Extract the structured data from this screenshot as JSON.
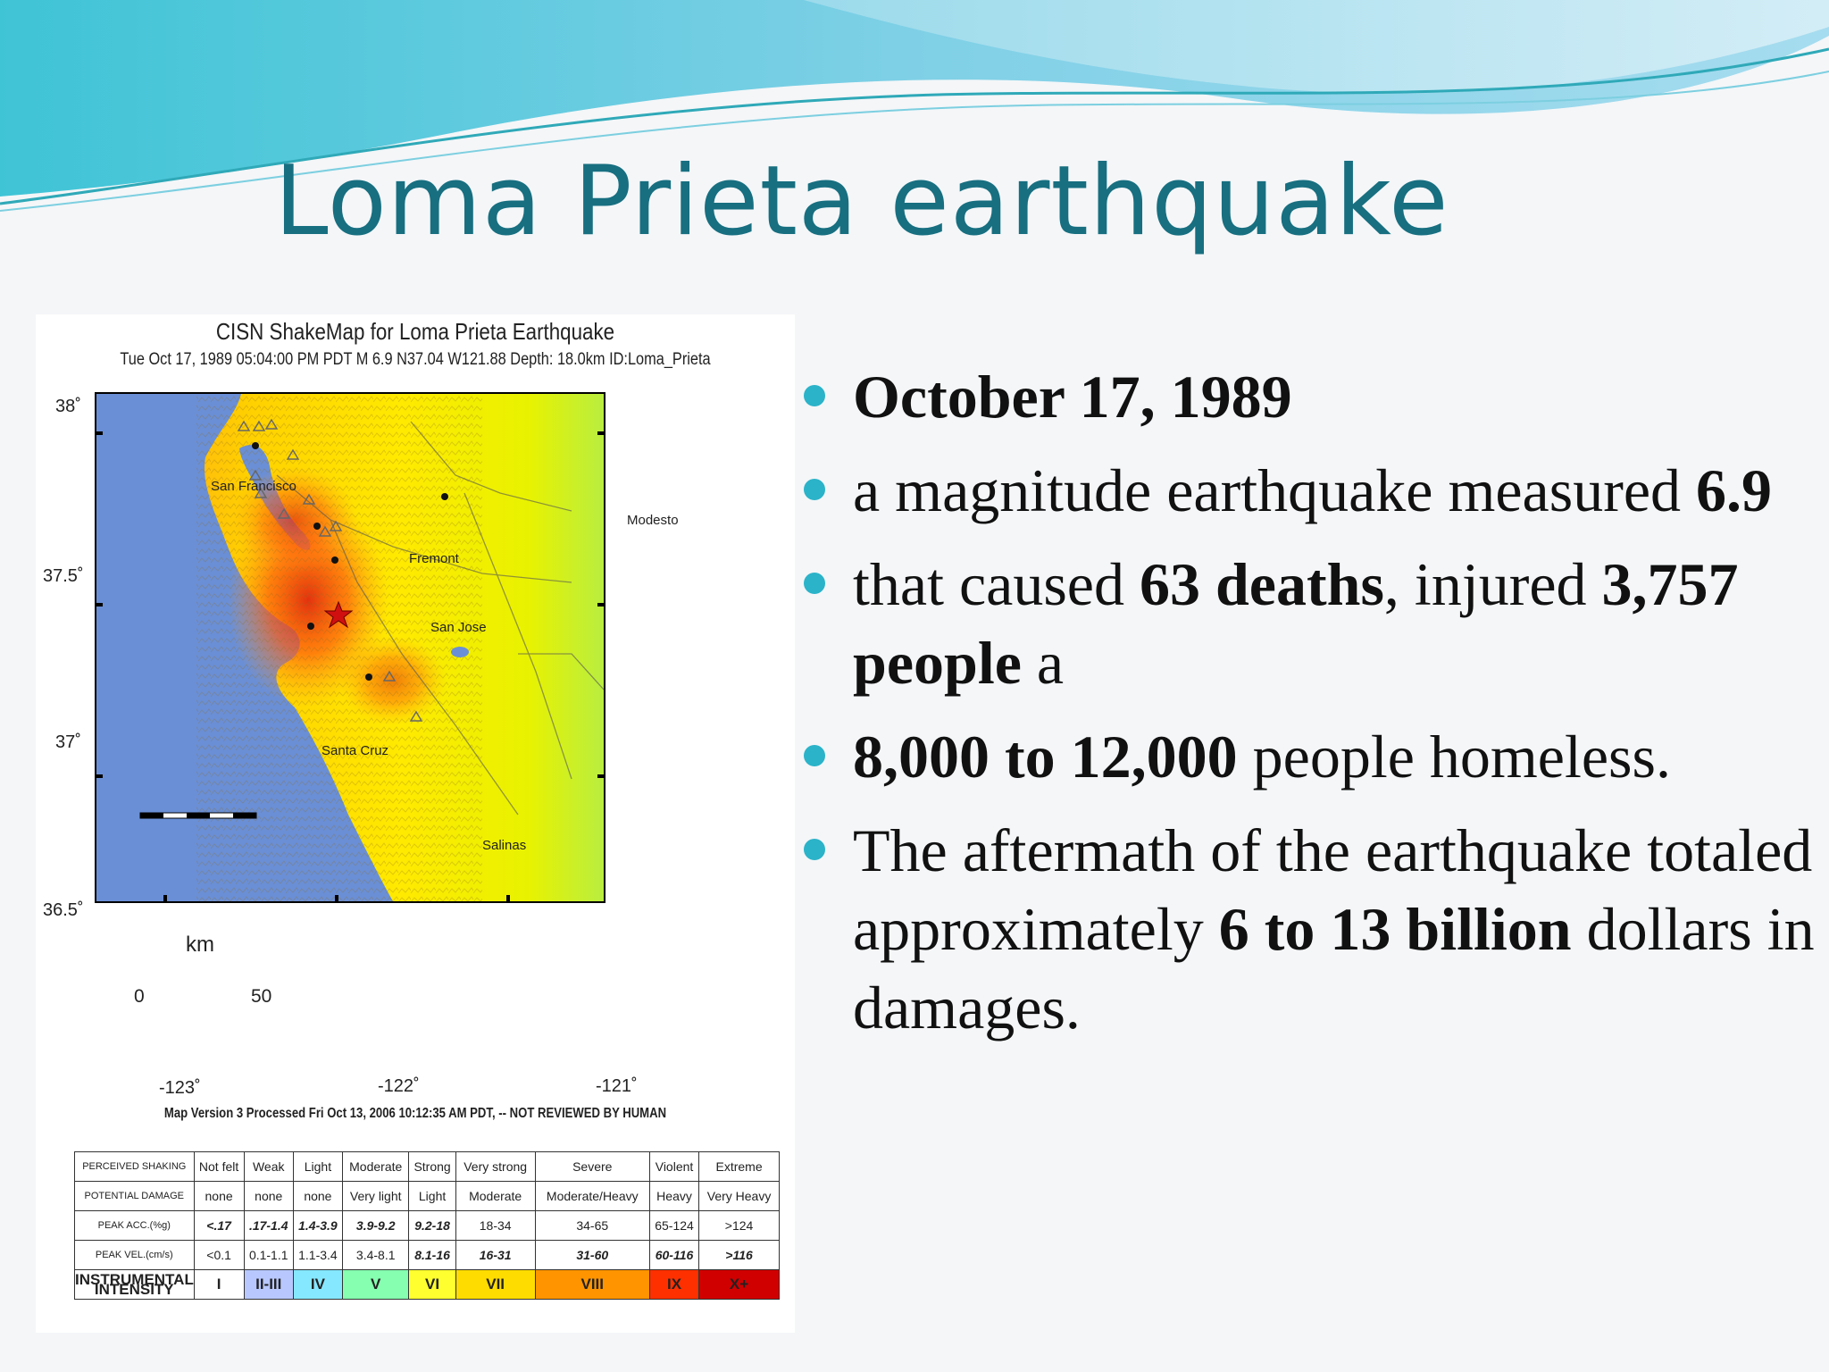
{
  "slide": {
    "title": "Loma Prieta earthquake"
  },
  "shakemap": {
    "title": "CISN ShakeMap for Loma Prieta Earthquake",
    "subtitle": "Tue Oct 17, 1989 05:04:00 PM PDT   M 6.9   N37.04 W121.88   Depth: 18.0km   ID:Loma_Prieta",
    "lat_labels": [
      "38˚",
      "37.5˚",
      "37˚",
      "36.5˚"
    ],
    "lon_labels": [
      "-123˚",
      "-122˚",
      "-121˚"
    ],
    "cities": [
      "San Francisco",
      "Modesto",
      "Fremont",
      "San Jose",
      "Santa Cruz",
      "Salinas"
    ],
    "scale_bar": {
      "unit": "km",
      "start": "0",
      "end": "50"
    },
    "footer": "Map Version 3 Processed Fri Oct 13, 2006 10:12:35 AM PDT, -- NOT REVIEWED BY HUMAN",
    "colors": {
      "ocean": "#6a8fd6",
      "epicenter": "#d01010"
    }
  },
  "intensity_table": {
    "rows": [
      {
        "header": "PERCEIVED SHAKING",
        "cells": [
          "Not felt",
          "Weak",
          "Light",
          "Moderate",
          "Strong",
          "Very strong",
          "Severe",
          "Violent",
          "Extreme"
        ]
      },
      {
        "header": "POTENTIAL DAMAGE",
        "cells": [
          "none",
          "none",
          "none",
          "Very light",
          "Light",
          "Moderate",
          "Moderate/Heavy",
          "Heavy",
          "Very Heavy"
        ]
      },
      {
        "header": "PEAK ACC.(%g)",
        "cells": [
          "<.17",
          ".17-1.4",
          "1.4-3.9",
          "3.9-9.2",
          "9.2-18",
          "18-34",
          "34-65",
          "65-124",
          ">124"
        ]
      },
      {
        "header": "PEAK VEL.(cm/s)",
        "cells": [
          "<0.1",
          "0.1-1.1",
          "1.1-3.4",
          "3.4-8.1",
          "8.1-16",
          "16-31",
          "31-60",
          "60-116",
          ">116"
        ]
      },
      {
        "header": "INSTRUMENTAL INTENSITY",
        "cells": [
          "I",
          "II-III",
          "IV",
          "V",
          "VI",
          "VII",
          "VIII",
          "IX",
          "X+"
        ]
      }
    ],
    "intensity_colors": [
      "#ffffff",
      "#b8c8ff",
      "#86e8ff",
      "#86ffb0",
      "#ffff30",
      "#ffdc00",
      "#ff9400",
      "#ff3000",
      "#d00000"
    ]
  },
  "bullets": [
    {
      "parts": [
        {
          "t": "October 17, 1989",
          "b": true
        }
      ]
    },
    {
      "parts": [
        {
          "t": "a magnitude earthquake measured ",
          "b": false
        },
        {
          "t": "6.9",
          "b": true
        }
      ]
    },
    {
      "parts": [
        {
          "t": "that caused ",
          "b": false
        },
        {
          "t": "63 deaths",
          "b": true
        },
        {
          "t": ", injured ",
          "b": false
        },
        {
          "t": "3,757 people",
          "b": true
        },
        {
          "t": " a",
          "b": false
        }
      ]
    },
    {
      "parts": [
        {
          "t": "8,000 to 12,000",
          "b": true
        },
        {
          "t": " people homeless.",
          "b": false
        }
      ]
    },
    {
      "parts": [
        {
          "t": " The aftermath of the earthquake totaled approximately ",
          "b": false
        },
        {
          "t": "6 to 13 billion",
          "b": true
        },
        {
          "t": " dollars in damages.",
          "b": false
        }
      ]
    }
  ]
}
